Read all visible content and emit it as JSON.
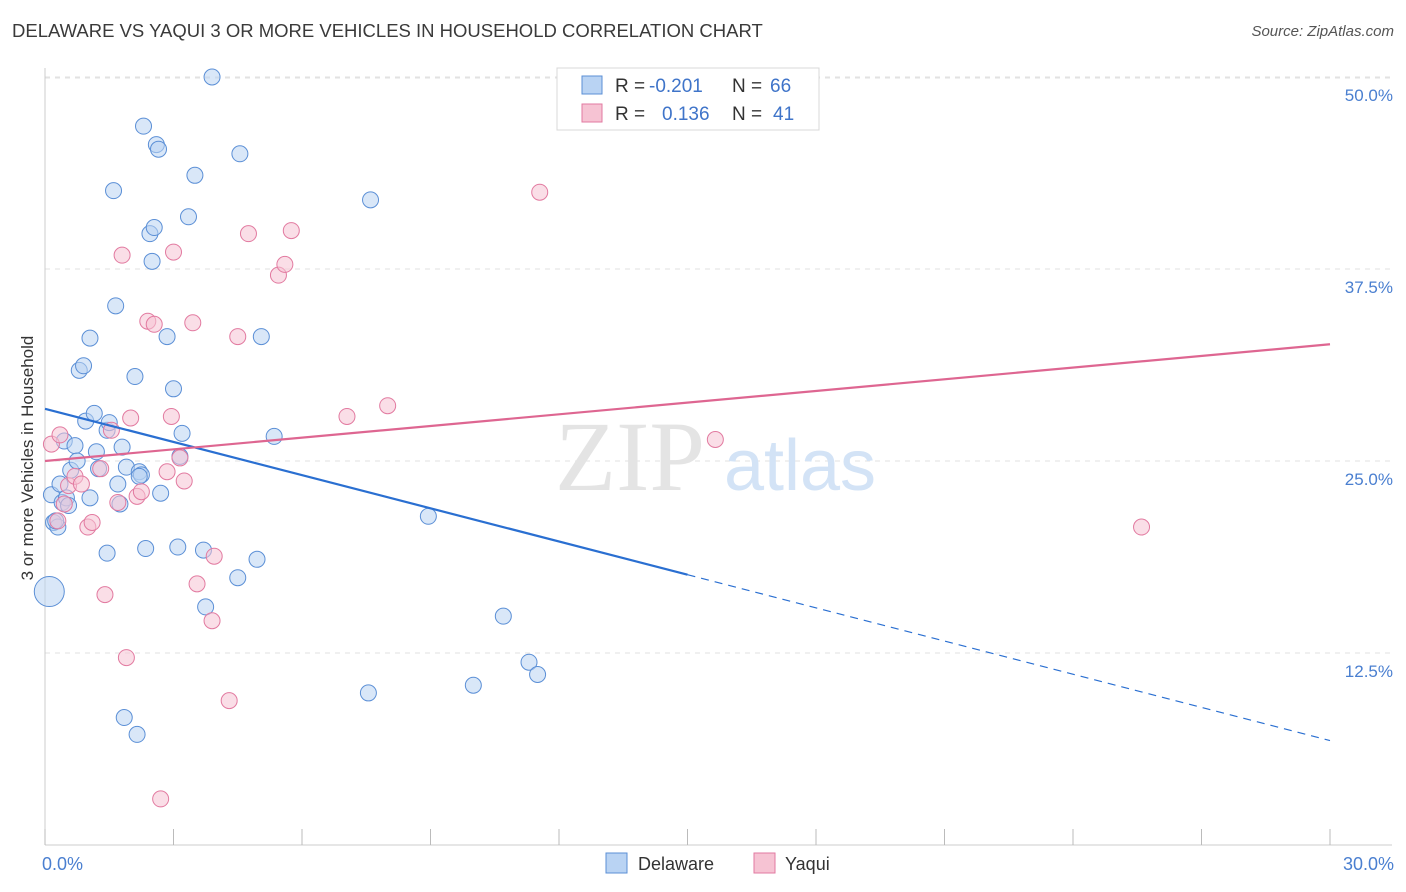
{
  "header": {
    "title": "DELAWARE VS YAQUI 3 OR MORE VEHICLES IN HOUSEHOLD CORRELATION CHART",
    "source": "Source: ZipAtlas.com"
  },
  "colors": {
    "delaware": "#5b8fd6",
    "delaware_fill": "#b9d3f3",
    "delaware_line": "#2a6fd1",
    "yaqui": "#e27aa0",
    "yaqui_fill": "#f6c3d3",
    "yaqui_line": "#de6691",
    "tick_label": "#4a7fd0",
    "grid": "#e2e2e2"
  },
  "legend_top": {
    "rows": [
      {
        "series": "Delaware",
        "r_label": "R =",
        "r_value": "-0.201",
        "n_label": "N =",
        "n_value": "66"
      },
      {
        "series": "Yaqui",
        "r_label": "R =",
        "r_value": "0.136",
        "n_label": "N =",
        "n_value": "41"
      }
    ]
  },
  "watermark": {
    "zip": "ZIP",
    "atlas": "atlas"
  },
  "chart_data": {
    "type": "scatter",
    "title": "DELAWARE VS YAQUI 3 OR MORE VEHICLES IN HOUSEHOLD CORRELATION CHART",
    "xlabel": "",
    "ylabel": "3 or more Vehicles in Household",
    "xlim": [
      0,
      30
    ],
    "ylim": [
      0,
      52
    ],
    "x_tick_labels": [
      {
        "value": 0,
        "label": "0.0%"
      },
      {
        "value": 30,
        "label": "30.0%"
      }
    ],
    "x_minor_ticks": [
      0,
      3,
      6,
      9,
      12,
      15,
      18,
      21,
      24,
      27,
      30
    ],
    "y_ticks": [
      {
        "value": 12.5,
        "label": "12.5%"
      },
      {
        "value": 25.0,
        "label": "25.0%"
      },
      {
        "value": 37.5,
        "label": "37.5%"
      },
      {
        "value": 50.0,
        "label": "50.0%"
      }
    ],
    "legend": [
      "Delaware",
      "Yaqui"
    ],
    "series": [
      {
        "name": "Delaware",
        "color": "#5b8fd6",
        "r": -0.201,
        "n": 66,
        "trend": {
          "x0": 0,
          "y0": 28.4,
          "x1": 15,
          "y1": 17.6,
          "dashed_to_x": 30,
          "dashed_to_y": 6.8
        },
        "points": [
          {
            "x": 0.1,
            "y": 16.5,
            "big": true
          },
          {
            "x": 0.15,
            "y": 22.8
          },
          {
            "x": 0.2,
            "y": 21.0
          },
          {
            "x": 0.3,
            "y": 20.7
          },
          {
            "x": 0.35,
            "y": 23.5
          },
          {
            "x": 0.4,
            "y": 22.3
          },
          {
            "x": 0.45,
            "y": 26.3
          },
          {
            "x": 0.5,
            "y": 22.6
          },
          {
            "x": 0.55,
            "y": 22.1
          },
          {
            "x": 0.6,
            "y": 24.4
          },
          {
            "x": 0.7,
            "y": 26.0
          },
          {
            "x": 0.75,
            "y": 25.0
          },
          {
            "x": 0.8,
            "y": 30.9
          },
          {
            "x": 0.9,
            "y": 31.2
          },
          {
            "x": 0.95,
            "y": 27.6
          },
          {
            "x": 1.05,
            "y": 33.0
          },
          {
            "x": 1.05,
            "y": 22.6
          },
          {
            "x": 1.15,
            "y": 28.1
          },
          {
            "x": 1.2,
            "y": 25.6
          },
          {
            "x": 1.25,
            "y": 24.5
          },
          {
            "x": 1.45,
            "y": 27.0
          },
          {
            "x": 1.5,
            "y": 27.5
          },
          {
            "x": 1.45,
            "y": 19.0
          },
          {
            "x": 1.6,
            "y": 42.6
          },
          {
            "x": 1.65,
            "y": 35.1
          },
          {
            "x": 1.7,
            "y": 23.5
          },
          {
            "x": 1.75,
            "y": 22.2
          },
          {
            "x": 1.8,
            "y": 25.9
          },
          {
            "x": 1.85,
            "y": 8.3
          },
          {
            "x": 1.9,
            "y": 24.6
          },
          {
            "x": 2.1,
            "y": 30.5
          },
          {
            "x": 2.15,
            "y": 7.2
          },
          {
            "x": 2.2,
            "y": 24.3
          },
          {
            "x": 2.25,
            "y": 24.1
          },
          {
            "x": 2.3,
            "y": 46.8
          },
          {
            "x": 2.35,
            "y": 19.3
          },
          {
            "x": 2.45,
            "y": 39.8
          },
          {
            "x": 2.5,
            "y": 38.0
          },
          {
            "x": 2.55,
            "y": 40.2
          },
          {
            "x": 2.6,
            "y": 45.6
          },
          {
            "x": 2.65,
            "y": 45.3
          },
          {
            "x": 2.7,
            "y": 22.9
          },
          {
            "x": 2.85,
            "y": 33.1
          },
          {
            "x": 3.0,
            "y": 29.7
          },
          {
            "x": 3.1,
            "y": 19.4
          },
          {
            "x": 3.15,
            "y": 25.3
          },
          {
            "x": 3.2,
            "y": 26.8
          },
          {
            "x": 3.35,
            "y": 40.9
          },
          {
            "x": 3.5,
            "y": 43.6
          },
          {
            "x": 3.7,
            "y": 19.2
          },
          {
            "x": 3.75,
            "y": 15.5
          },
          {
            "x": 3.9,
            "y": 50.0
          },
          {
            "x": 4.5,
            "y": 17.4
          },
          {
            "x": 4.55,
            "y": 45.0
          },
          {
            "x": 4.95,
            "y": 18.6
          },
          {
            "x": 5.05,
            "y": 33.1
          },
          {
            "x": 5.35,
            "y": 26.6
          },
          {
            "x": 7.55,
            "y": 9.9
          },
          {
            "x": 7.6,
            "y": 42.0
          },
          {
            "x": 8.95,
            "y": 21.4
          },
          {
            "x": 10.0,
            "y": 10.4
          },
          {
            "x": 10.7,
            "y": 14.9
          },
          {
            "x": 11.3,
            "y": 11.9
          },
          {
            "x": 11.5,
            "y": 11.1
          },
          {
            "x": 2.2,
            "y": 24.0
          },
          {
            "x": 0.25,
            "y": 21.1
          }
        ]
      },
      {
        "name": "Yaqui",
        "color": "#e27aa0",
        "r": 0.136,
        "n": 41,
        "trend": {
          "x0": 0,
          "y0": 25.0,
          "x1": 30,
          "y1": 32.6
        },
        "points": [
          {
            "x": 0.15,
            "y": 26.1
          },
          {
            "x": 0.3,
            "y": 21.1
          },
          {
            "x": 0.35,
            "y": 26.7
          },
          {
            "x": 0.45,
            "y": 22.2
          },
          {
            "x": 0.55,
            "y": 23.4
          },
          {
            "x": 0.7,
            "y": 24.0
          },
          {
            "x": 0.85,
            "y": 23.5
          },
          {
            "x": 1.0,
            "y": 20.7
          },
          {
            "x": 1.1,
            "y": 21.0
          },
          {
            "x": 1.3,
            "y": 24.5
          },
          {
            "x": 1.4,
            "y": 16.3
          },
          {
            "x": 1.55,
            "y": 27.0
          },
          {
            "x": 1.7,
            "y": 22.3
          },
          {
            "x": 1.8,
            "y": 38.4
          },
          {
            "x": 1.9,
            "y": 12.2
          },
          {
            "x": 2.0,
            "y": 27.8
          },
          {
            "x": 2.15,
            "y": 22.7
          },
          {
            "x": 2.25,
            "y": 23.0
          },
          {
            "x": 2.4,
            "y": 34.1
          },
          {
            "x": 2.55,
            "y": 33.9
          },
          {
            "x": 2.7,
            "y": 3.0
          },
          {
            "x": 2.85,
            "y": 24.3
          },
          {
            "x": 2.95,
            "y": 27.9
          },
          {
            "x": 3.0,
            "y": 38.6
          },
          {
            "x": 3.15,
            "y": 25.2
          },
          {
            "x": 3.25,
            "y": 23.7
          },
          {
            "x": 3.45,
            "y": 34.0
          },
          {
            "x": 3.55,
            "y": 17.0
          },
          {
            "x": 3.9,
            "y": 14.6
          },
          {
            "x": 3.95,
            "y": 18.8
          },
          {
            "x": 4.3,
            "y": 9.4
          },
          {
            "x": 4.5,
            "y": 33.1
          },
          {
            "x": 4.75,
            "y": 39.8
          },
          {
            "x": 5.45,
            "y": 37.1
          },
          {
            "x": 5.6,
            "y": 37.8
          },
          {
            "x": 5.75,
            "y": 40.0
          },
          {
            "x": 7.05,
            "y": 27.9
          },
          {
            "x": 8.0,
            "y": 28.6
          },
          {
            "x": 11.55,
            "y": 42.5
          },
          {
            "x": 15.65,
            "y": 26.4
          },
          {
            "x": 25.6,
            "y": 20.7
          }
        ]
      }
    ]
  }
}
